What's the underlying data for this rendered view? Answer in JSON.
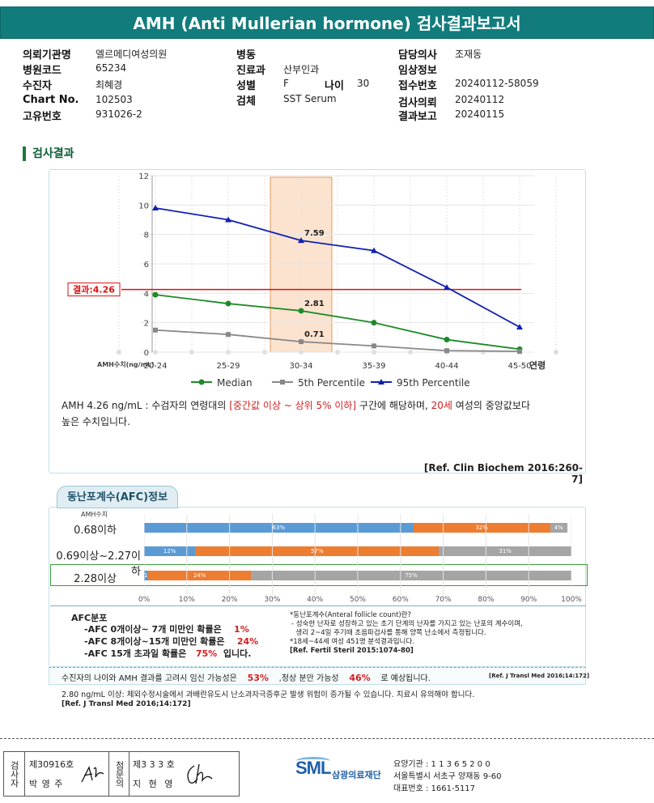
{
  "title": "AMH (Anti Mullerian hormone) 검사결과보고서",
  "info": {
    "col1": [
      {
        "label": "의뢰기관명",
        "value": "엘르메디여성의원"
      },
      {
        "label": "병원코드",
        "value": "65234"
      },
      {
        "label": "수진자",
        "value": "최혜경"
      },
      {
        "label": "Chart No.",
        "value": "102503"
      },
      {
        "label": "고유번호",
        "value": "931026-2"
      }
    ],
    "col2": [
      {
        "label": "병동",
        "value": ""
      },
      {
        "label": "진료과",
        "value": "산부인과"
      },
      {
        "label": "성별",
        "value": "F"
      },
      {
        "label": "검체",
        "value": "SST Serum"
      }
    ],
    "age_label": "나이",
    "age_value": "30",
    "col3": [
      {
        "label": "담당의사",
        "value": "조재동"
      },
      {
        "label": "임상정보",
        "value": ""
      },
      {
        "label": "접수번호",
        "value": "20240112-58059"
      },
      {
        "label": "검사의뢰",
        "value": "20240112"
      },
      {
        "label": "결과보고",
        "value": "20240115"
      }
    ]
  },
  "section_title": "검사결과",
  "chart_data": {
    "type": "line",
    "categories": [
      "20-24",
      "25-29",
      "30-34",
      "35-39",
      "40-44",
      "45-50"
    ],
    "x_suffix": "연령",
    "ylabel": "AMH수치(ng/mL)",
    "ylim": [
      0,
      12
    ],
    "yticks": [
      0,
      2,
      4,
      6,
      8,
      10,
      12
    ],
    "highlight_category": "30-34",
    "result_label": "결과:4.26",
    "result_value": 4.26,
    "series": [
      {
        "name": "Median",
        "color": "#1e8a2a",
        "marker": "circle",
        "values": [
          3.9,
          3.3,
          2.81,
          2.0,
          0.85,
          0.2
        ]
      },
      {
        "name": "5th Percentile",
        "color": "#888888",
        "marker": "square",
        "values": [
          1.5,
          1.2,
          0.71,
          0.42,
          0.1,
          0.05
        ]
      },
      {
        "name": "95th Percentile",
        "color": "#1020b0",
        "marker": "triangle",
        "values": [
          9.8,
          9.0,
          7.59,
          6.9,
          4.4,
          1.7
        ]
      }
    ],
    "point_labels": [
      {
        "series": 0,
        "index": 2,
        "text": "2.81"
      },
      {
        "series": 1,
        "index": 2,
        "text": "0.71"
      },
      {
        "series": 2,
        "index": 2,
        "text": "7.59"
      }
    ]
  },
  "interpretation": {
    "p1": "AMH  4.26 ng/mL : 수검자의 연령대의 ",
    "p2": "[중간값 이상 ~ 상위 5% 이하]",
    "p3": "  구간에 해당하며, ",
    "p4": "20세",
    "p5": " 여성의 중앙값보다",
    "line2": "높은 수치입니다.",
    "ref": "[Ref. Clin Biochem 2016:260-7]"
  },
  "afc": {
    "tab": "동난포계수(AFC)정보",
    "amh_header": "AMH수치",
    "rows": [
      {
        "label": "0.68이하",
        "segments": [
          {
            "value": 63,
            "text": "63%",
            "color": "#5b9bd5"
          },
          {
            "value": 32,
            "text": "32%",
            "color": "#ed7d31"
          },
          {
            "value": 4,
            "text": "4%",
            "color": "#a5a5a5"
          }
        ]
      },
      {
        "label": "0.69이상~2.27이하",
        "segments": [
          {
            "value": 12,
            "text": "12%",
            "color": "#5b9bd5"
          },
          {
            "value": 57,
            "text": "57%",
            "color": "#ed7d31"
          },
          {
            "value": 31,
            "text": "31%",
            "color": "#a5a5a5"
          }
        ]
      },
      {
        "label": "2.28이상",
        "segments": [
          {
            "value": 1,
            "text": "1%",
            "color": "#5b9bd5"
          },
          {
            "value": 24,
            "text": "24%",
            "color": "#ed7d31"
          },
          {
            "value": 75,
            "text": "75%",
            "color": "#a5a5a5"
          }
        ]
      }
    ],
    "xticks": [
      "0%",
      "10%",
      "20%",
      "30%",
      "40%",
      "50%",
      "60%",
      "70%",
      "80%",
      "90%",
      "100%"
    ],
    "dist_title": "AFC분포",
    "dist": [
      {
        "text": "-AFC  0개이상~ 7개 미만인 확률은",
        "pct": "1%",
        "tail": ""
      },
      {
        "text": "-AFC  8개이상~15개 미만인 확률은",
        "pct": "24%",
        "tail": ""
      },
      {
        "text": "-AFC  15개 초과일 확률은",
        "pct": "75%",
        "tail": "입니다."
      }
    ],
    "def_title": "*동난포계수(Anteral follicle count)란?",
    "def_lines": [
      "- 성숙한 난자로 성장하고 있는 초기 단계의 난자를 가지고 있는 난포의 계수이며,",
      "  생리 2~4일 주기때 초음파검사를 통해 양쪽 난소에서 측정됩니다.",
      "*18세~44세 여성 451명 분석결과입니다."
    ],
    "def_ref": "[Ref. Fertil Steril 2015:1074-80]"
  },
  "pregnancy": {
    "t1": "수진자의  나이와  AMH  결과를  고려시  임신  가능성은",
    "v1": "53%",
    "t2": ",정상  분만  가능성",
    "v2": "46%",
    "t3": "로  예상됩니다.",
    "ref": "[Ref. J Transl Med 2016;14:172]"
  },
  "warning": {
    "text": "2.80  ng/mL  이상: 체외수정시술에서 과배란유도시 난소과자극증후군 발생 위험이 증가될 수 있습니다. 치료시 유의해야 합니다.",
    "ref": "[Ref. J Transl Med 2016;14:172]"
  },
  "footer": {
    "inspector_label": "검사자",
    "inspector_no": "제30916호",
    "inspector_name": "박 영 주",
    "reviewer_label": "점문의",
    "reviewer_no": "제3 3 3 호",
    "reviewer_name": "지 현 영",
    "logo": "SML",
    "logo_name": "삼광의료재단",
    "agency_no": "요양기관 : 1 1 3 6 5 2 0 0",
    "address": "서울특별시 서초구 양재동 9-60",
    "phone": "대표번호 : 1661-5117"
  }
}
